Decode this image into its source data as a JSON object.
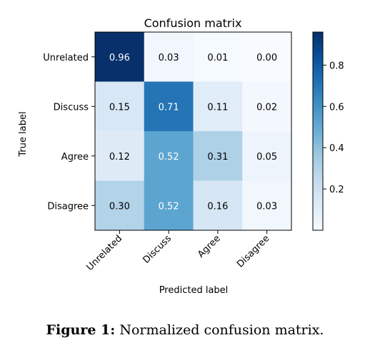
{
  "caption": {
    "label": "Figure 1:",
    "text": "Normalized confusion matrix."
  },
  "chart_data": {
    "type": "heatmap",
    "title": "Confusion matrix",
    "xlabel": "Predicted label",
    "ylabel": "True label",
    "x_categories": [
      "Unrelated",
      "Discuss",
      "Agree",
      "Disagree"
    ],
    "y_categories": [
      "Unrelated",
      "Discuss",
      "Agree",
      "Disagree"
    ],
    "values": [
      [
        0.96,
        0.03,
        0.01,
        0.0
      ],
      [
        0.15,
        0.71,
        0.11,
        0.02
      ],
      [
        0.12,
        0.52,
        0.31,
        0.05
      ],
      [
        0.3,
        0.52,
        0.16,
        0.03
      ]
    ],
    "value_labels": [
      [
        "0.96",
        "0.03",
        "0.01",
        "0.00"
      ],
      [
        "0.15",
        "0.71",
        "0.11",
        "0.02"
      ],
      [
        "0.12",
        "0.52",
        "0.31",
        "0.05"
      ],
      [
        "0.30",
        "0.52",
        "0.16",
        "0.03"
      ]
    ],
    "colormap": "Blues",
    "colormap_stops": [
      "#f7fbff",
      "#deebf7",
      "#c6dbef",
      "#9ecae1",
      "#6baed6",
      "#4292c6",
      "#2171b5",
      "#08519c",
      "#08306b"
    ],
    "vmin": 0.0,
    "vmax": 0.96,
    "colorbar_ticks": [
      0.2,
      0.4,
      0.6,
      0.8
    ],
    "colorbar_tick_labels": [
      "0.2",
      "0.4",
      "0.6",
      "0.8"
    ],
    "grid": false,
    "text_color_dark": "#000000",
    "text_color_light": "#ffffff"
  }
}
